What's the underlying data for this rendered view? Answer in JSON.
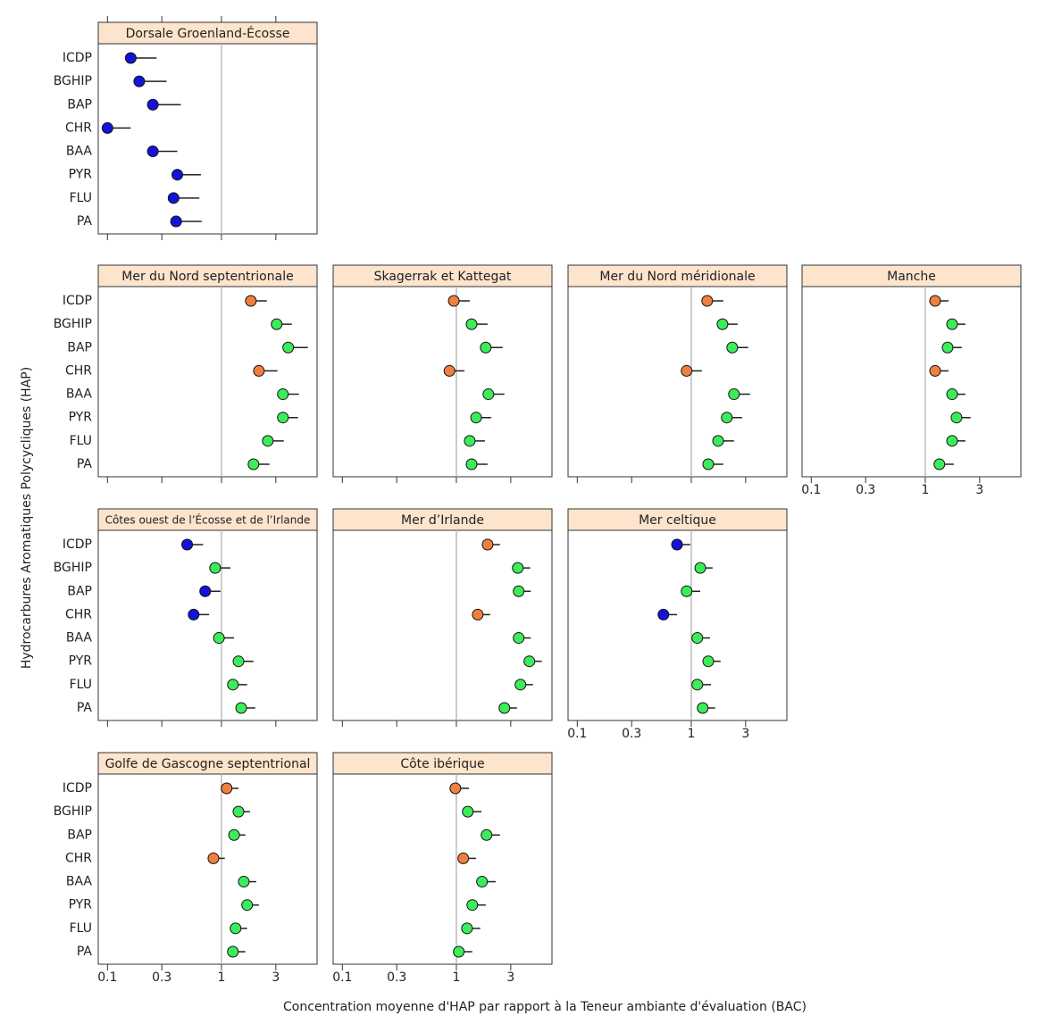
{
  "axes": {
    "xlabel": "Concentration moyenne d'HAP par rapport à la Teneur ambiante d'évaluation (BAC)",
    "ylabel": "Hydrocarbures Aromatiques Polycycliques (HAP)",
    "xscale": "log",
    "xlim": [
      0.083,
      6.9
    ],
    "xticks": [
      0.1,
      0.3,
      1,
      3
    ],
    "reference_line": 1,
    "categories": [
      "ICDP",
      "BGHIP",
      "BAP",
      "CHR",
      "BAA",
      "PYR",
      "FLU",
      "PA"
    ]
  },
  "chart_data": [
    {
      "type": "dot",
      "title": "Dorsale Groenland-Écosse",
      "values": [
        0.16,
        0.19,
        0.25,
        0.1,
        0.25,
        0.41,
        0.38,
        0.4
      ],
      "upper": [
        0.27,
        0.33,
        0.44,
        0.16,
        0.41,
        0.66,
        0.64,
        0.67
      ],
      "colors": [
        "#1414d8",
        "#1414d8",
        "#1414d8",
        "#1414d8",
        "#1414d8",
        "#1414d8",
        "#1414d8",
        "#1414d8"
      ]
    },
    {
      "type": "dot",
      "title": "Mer du Nord septentrionale",
      "values": [
        1.81,
        3.05,
        3.85,
        2.13,
        3.46,
        3.46,
        2.55,
        1.91
      ],
      "upper": [
        2.5,
        4.14,
        5.73,
        3.1,
        4.78,
        4.7,
        3.52,
        2.64
      ],
      "colors": [
        "#f08040",
        "#3cec5a",
        "#3cec5a",
        "#f08040",
        "#3cec5a",
        "#3cec5a",
        "#3cec5a",
        "#3cec5a"
      ]
    },
    {
      "type": "dot",
      "title": "Skagerrak et Kattegat",
      "values": [
        0.95,
        1.36,
        1.81,
        0.87,
        1.91,
        1.49,
        1.31,
        1.36
      ],
      "upper": [
        1.31,
        1.88,
        2.55,
        1.18,
        2.64,
        2.02,
        1.78,
        1.88
      ],
      "colors": [
        "#f08040",
        "#3cec5a",
        "#3cec5a",
        "#f08040",
        "#3cec5a",
        "#3cec5a",
        "#3cec5a",
        "#3cec5a"
      ]
    },
    {
      "type": "dot",
      "title": "Mer du Nord méridionale",
      "values": [
        1.38,
        1.88,
        2.29,
        0.91,
        2.37,
        2.05,
        1.72,
        1.41
      ],
      "upper": [
        1.91,
        2.55,
        3.16,
        1.24,
        3.28,
        2.79,
        2.37,
        1.91
      ],
      "colors": [
        "#f08040",
        "#3cec5a",
        "#3cec5a",
        "#f08040",
        "#3cec5a",
        "#3cec5a",
        "#3cec5a",
        "#3cec5a"
      ]
    },
    {
      "type": "dot",
      "title": "Manche",
      "values": [
        1.22,
        1.72,
        1.57,
        1.22,
        1.72,
        1.88,
        1.72,
        1.33
      ],
      "upper": [
        1.6,
        2.25,
        2.09,
        1.6,
        2.25,
        2.5,
        2.25,
        1.78
      ],
      "colors": [
        "#f08040",
        "#3cec5a",
        "#3cec5a",
        "#f08040",
        "#3cec5a",
        "#3cec5a",
        "#3cec5a",
        "#3cec5a"
      ]
    },
    {
      "type": "dot",
      "title": "Côtes ouest de l’Écosse et de l’Irlande",
      "values": [
        0.5,
        0.88,
        0.72,
        0.57,
        0.95,
        1.41,
        1.26,
        1.49
      ],
      "upper": [
        0.69,
        1.2,
        0.98,
        0.78,
        1.29,
        1.91,
        1.68,
        1.98
      ],
      "colors": [
        "#1414d8",
        "#3cec5a",
        "#1414d8",
        "#1414d8",
        "#3cec5a",
        "#3cec5a",
        "#3cec5a",
        "#3cec5a"
      ]
    },
    {
      "type": "dot",
      "title": "Mer d’Irlande",
      "values": [
        1.88,
        3.46,
        3.52,
        1.54,
        3.52,
        4.37,
        3.65,
        2.64
      ],
      "upper": [
        2.41,
        4.45,
        4.5,
        1.98,
        4.5,
        5.62,
        4.7,
        3.4
      ],
      "colors": [
        "#f08040",
        "#3cec5a",
        "#3cec5a",
        "#f08040",
        "#3cec5a",
        "#3cec5a",
        "#3cec5a",
        "#3cec5a"
      ]
    },
    {
      "type": "dot",
      "title": "Mer celtique",
      "values": [
        0.75,
        1.2,
        0.91,
        0.57,
        1.13,
        1.41,
        1.13,
        1.26
      ],
      "upper": [
        0.98,
        1.54,
        1.2,
        0.75,
        1.46,
        1.81,
        1.49,
        1.62
      ],
      "colors": [
        "#1414d8",
        "#3cec5a",
        "#3cec5a",
        "#1414d8",
        "#3cec5a",
        "#3cec5a",
        "#3cec5a",
        "#3cec5a"
      ]
    },
    {
      "type": "dot",
      "title": "Golfe de Gascogne septentrional",
      "values": [
        1.11,
        1.41,
        1.29,
        0.85,
        1.57,
        1.68,
        1.33,
        1.26
      ],
      "upper": [
        1.41,
        1.78,
        1.62,
        1.07,
        2.02,
        2.13,
        1.68,
        1.62
      ],
      "colors": [
        "#f08040",
        "#3cec5a",
        "#3cec5a",
        "#f08040",
        "#3cec5a",
        "#3cec5a",
        "#3cec5a",
        "#3cec5a"
      ]
    },
    {
      "type": "dot",
      "title": "Côte ibérique",
      "values": [
        0.98,
        1.26,
        1.84,
        1.15,
        1.68,
        1.38,
        1.24,
        1.05
      ],
      "upper": [
        1.29,
        1.66,
        2.41,
        1.49,
        2.21,
        1.81,
        1.62,
        1.38
      ],
      "colors": [
        "#f08040",
        "#3cec5a",
        "#3cec5a",
        "#f08040",
        "#3cec5a",
        "#3cec5a",
        "#3cec5a",
        "#3cec5a"
      ]
    }
  ]
}
